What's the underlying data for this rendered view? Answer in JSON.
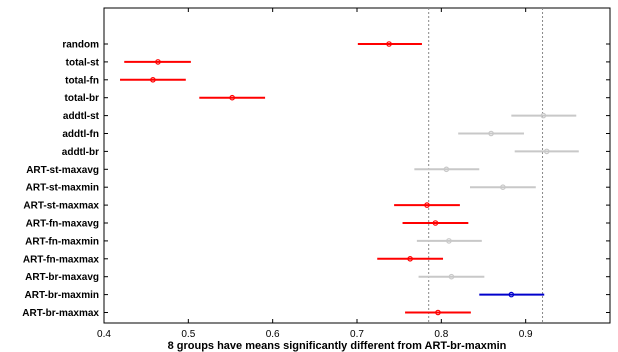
{
  "chart_data": {
    "type": "scatter",
    "title": "",
    "xlabel": "8 groups have means significantly different from ART-br-maxmin",
    "ylabel": "",
    "xlim": [
      0.4,
      1.0
    ],
    "xticks": [
      0.4,
      0.5,
      0.6,
      0.7,
      0.8,
      0.9
    ],
    "xtick_labels": [
      "0.4",
      "0.5",
      "0.6",
      "0.7",
      "0.8",
      "0.9"
    ],
    "reference_lines": [
      0.785,
      0.92
    ],
    "colors": {
      "significant": "#ff0000",
      "not_significant": "#c8c8c8",
      "reference": "#0000cc"
    },
    "categories": [
      "random",
      "total-st",
      "total-fn",
      "total-br",
      "addtl-st",
      "addtl-fn",
      "addtl-br",
      "ART-st-maxavg",
      "ART-st-maxmin",
      "ART-st-maxmax",
      "ART-fn-maxavg",
      "ART-fn-maxmin",
      "ART-fn-maxmax",
      "ART-br-maxavg",
      "ART-br-maxmin",
      "ART-br-maxmax"
    ],
    "means": [
      0.738,
      0.464,
      0.458,
      0.552,
      0.921,
      0.859,
      0.925,
      0.806,
      0.873,
      0.783,
      0.793,
      0.809,
      0.763,
      0.812,
      0.883,
      0.796
    ],
    "lower": [
      0.701,
      0.424,
      0.419,
      0.513,
      0.883,
      0.82,
      0.887,
      0.768,
      0.834,
      0.744,
      0.754,
      0.771,
      0.724,
      0.773,
      0.845,
      0.757
    ],
    "upper": [
      0.777,
      0.503,
      0.497,
      0.591,
      0.96,
      0.898,
      0.963,
      0.845,
      0.912,
      0.822,
      0.832,
      0.848,
      0.802,
      0.851,
      0.922,
      0.835
    ],
    "status": [
      "significant",
      "significant",
      "significant",
      "significant",
      "not_significant",
      "not_significant",
      "not_significant",
      "not_significant",
      "not_significant",
      "significant",
      "significant",
      "not_significant",
      "significant",
      "not_significant",
      "reference",
      "significant"
    ],
    "grid": false
  }
}
